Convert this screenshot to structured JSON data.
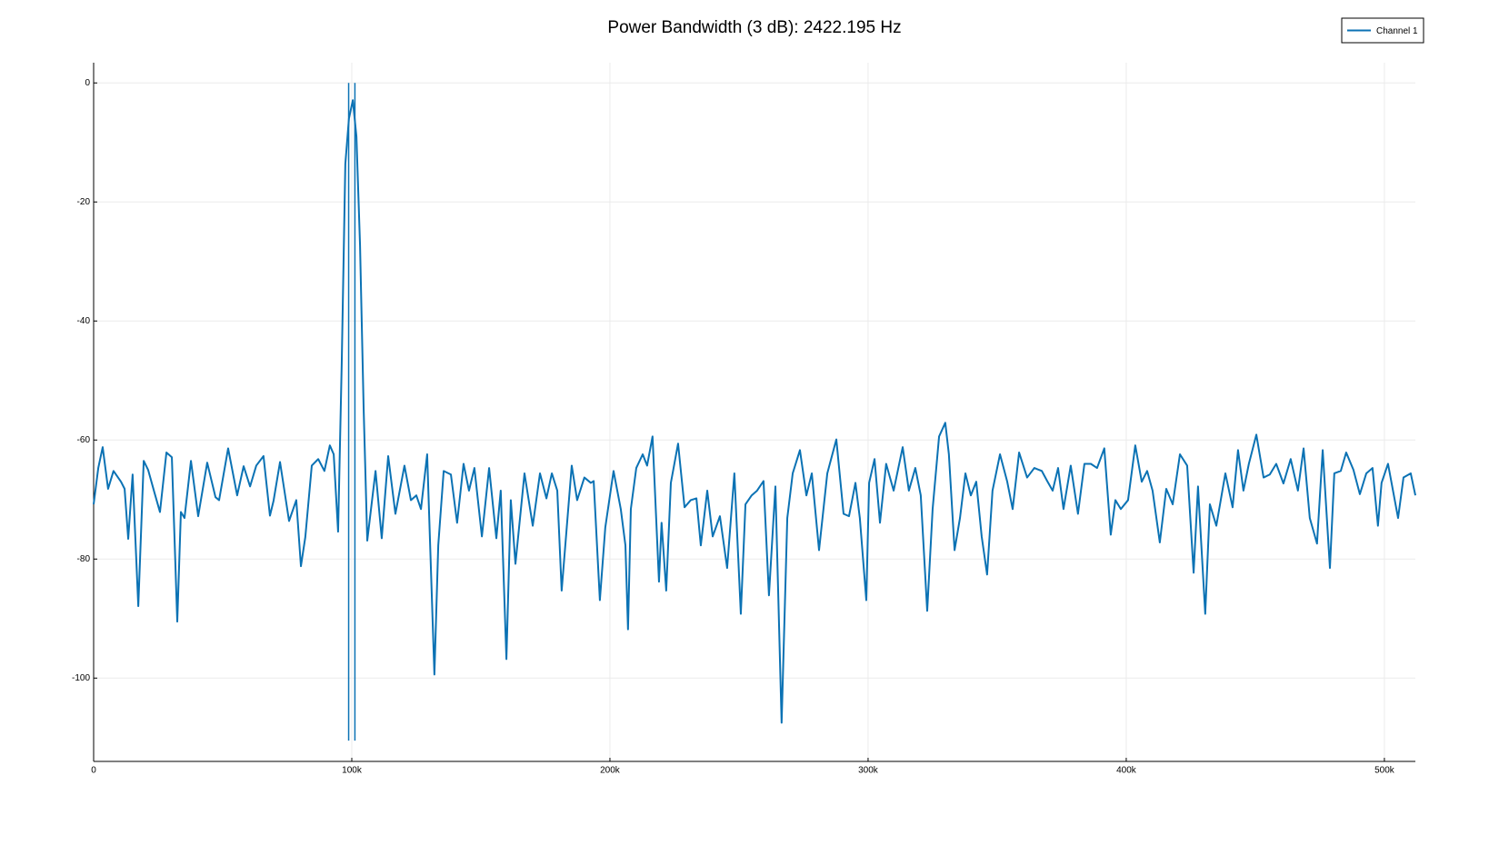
{
  "chart_data": {
    "type": "line",
    "title": "Power Bandwidth (3 dB): 2422.195 Hz",
    "xlim": [
      0,
      512000
    ],
    "ylim": [
      -114,
      3.4
    ],
    "xticks": [
      0,
      {
        "value": 100000,
        "label": "100k"
      },
      {
        "value": 200000,
        "label": "200k"
      },
      {
        "value": 300000,
        "label": "300k"
      },
      {
        "value": 400000,
        "label": "400k"
      },
      {
        "value": 500000,
        "label": "500k"
      }
    ],
    "yticks": [
      0,
      -20,
      -40,
      -60,
      -80,
      -100
    ],
    "grid": true,
    "legend": "top-right",
    "x": [
      0,
      1800,
      3500,
      5600,
      7700,
      10600,
      12000,
      13400,
      15100,
      17300,
      19400,
      21100,
      23600,
      25700,
      28200,
      30300,
      32400,
      33800,
      35200,
      37700,
      40500,
      44000,
      47200,
      48600,
      52100,
      55600,
      58100,
      60600,
      63000,
      65800,
      68300,
      69700,
      72200,
      75700,
      78500,
      80300,
      82000,
      84500,
      87000,
      89400,
      91500,
      93000,
      94700,
      96100,
      97500,
      98900,
      100400,
      101800,
      103200,
      104600,
      106000,
      109200,
      111600,
      114100,
      116900,
      120400,
      122900,
      125000,
      126800,
      129200,
      132000,
      133500,
      135600,
      138400,
      140800,
      143300,
      145400,
      147500,
      150400,
      153200,
      156000,
      157700,
      159900,
      161600,
      163400,
      166900,
      170100,
      172900,
      175400,
      177500,
      179600,
      181300,
      185200,
      187300,
      190100,
      192600,
      193700,
      196100,
      198200,
      201400,
      204200,
      206000,
      207000,
      208100,
      210200,
      212700,
      214400,
      216500,
      219000,
      220000,
      221800,
      223600,
      226400,
      228900,
      231300,
      233500,
      235200,
      237700,
      239800,
      242600,
      245400,
      248200,
      250700,
      252500,
      254900,
      257000,
      259500,
      261600,
      264100,
      266500,
      268700,
      270800,
      273600,
      276100,
      278200,
      281000,
      284200,
      287700,
      290500,
      292600,
      295100,
      296800,
      299300,
      300400,
      302500,
      304600,
      307000,
      309900,
      313400,
      315800,
      318300,
      320400,
      322900,
      325000,
      327500,
      329900,
      331300,
      333500,
      335600,
      337700,
      339800,
      341900,
      344000,
      346100,
      348200,
      351100,
      353900,
      356000,
      358500,
      361600,
      364400,
      367300,
      369400,
      371500,
      373600,
      375700,
      378500,
      381300,
      383800,
      386300,
      388700,
      391500,
      394000,
      395800,
      397900,
      400700,
      403500,
      406000,
      408100,
      410200,
      413000,
      415500,
      418000,
      420800,
      423600,
      426100,
      427800,
      430600,
      432400,
      434900,
      438400,
      441200,
      443300,
      445400,
      447500,
      450400,
      453200,
      455600,
      458100,
      460900,
      463700,
      466500,
      468700,
      471100,
      473900,
      476100,
      478900,
      480600,
      483100,
      485200,
      488000,
      490500,
      493000,
      495400,
      497500,
      498900,
      501400,
      505300,
      507400,
      510200,
      512000
    ],
    "series": [
      {
        "name": "Channel 1",
        "color": "#0b72b4",
        "values": [
          -70.8,
          -64.7,
          -61.2,
          -68.2,
          -65.2,
          -67,
          -68.2,
          -76.6,
          -65.8,
          -87.9,
          -63.5,
          -65,
          -68.9,
          -72.1,
          -62.1,
          -62.9,
          -90.5,
          -72.1,
          -73.1,
          -63.5,
          -72.8,
          -63.8,
          -69.6,
          -70.1,
          -61.4,
          -69.3,
          -64.4,
          -67.8,
          -64.3,
          -62.7,
          -72.7,
          -70.2,
          -63.7,
          -73.6,
          -70.1,
          -81.2,
          -76.3,
          -64.3,
          -63.2,
          -65.2,
          -60.9,
          -62.4,
          -75.4,
          -47.2,
          -13.6,
          -6,
          -2.9,
          -9,
          -27.3,
          -54.8,
          -76.9,
          -65.2,
          -76.5,
          -62.7,
          -72.4,
          -64.3,
          -70.1,
          -69.3,
          -71.6,
          -62.4,
          -99.4,
          -77.7,
          -65.2,
          -65.8,
          -73.9,
          -64,
          -68.5,
          -64.7,
          -76.2,
          -64.7,
          -76.5,
          -68.5,
          -96.8,
          -70.1,
          -80.8,
          -65.6,
          -74.4,
          -65.6,
          -69.8,
          -65.6,
          -68.5,
          -85.3,
          -64.3,
          -70.1,
          -66.3,
          -67.2,
          -66.9,
          -86.9,
          -74.7,
          -65.2,
          -71.6,
          -77.7,
          -91.8,
          -71.6,
          -64.7,
          -62.4,
          -64.3,
          -59.4,
          -83.8,
          -73.9,
          -85.3,
          -67.2,
          -60.6,
          -71.3,
          -70.1,
          -69.8,
          -77.7,
          -68.5,
          -76.2,
          -72.8,
          -81.5,
          -65.6,
          -89.2,
          -70.8,
          -69.3,
          -68.5,
          -66.9,
          -86.1,
          -67.8,
          -107.5,
          -73.1,
          -65.6,
          -61.7,
          -69.3,
          -65.6,
          -78.5,
          -65.6,
          -59.9,
          -72.4,
          -72.8,
          -67.2,
          -73.1,
          -86.9,
          -67.2,
          -63.2,
          -73.9,
          -64,
          -68.5,
          -61.2,
          -68.5,
          -64.7,
          -69.3,
          -88.7,
          -71.6,
          -59.4,
          -57.1,
          -62.4,
          -78.5,
          -73.1,
          -65.6,
          -69.3,
          -67,
          -76.2,
          -82.6,
          -68.5,
          -62.4,
          -67,
          -71.6,
          -62.1,
          -66.3,
          -64.7,
          -65.2,
          -66.9,
          -68.5,
          -64.7,
          -71.6,
          -64.3,
          -72.4,
          -64,
          -64,
          -64.7,
          -61.4,
          -75.9,
          -70.1,
          -71.6,
          -70.1,
          -60.9,
          -67,
          -65.2,
          -68.5,
          -77.2,
          -68.2,
          -70.8,
          -62.4,
          -64.3,
          -82.3,
          -67.8,
          -89.2,
          -70.8,
          -74.4,
          -65.6,
          -71.3,
          -61.7,
          -68.5,
          -64,
          -59.1,
          -66.3,
          -65.8,
          -64,
          -67.3,
          -63.2,
          -68.5,
          -61.4,
          -73.1,
          -77.4,
          -61.7,
          -81.5,
          -65.6,
          -65.2,
          -62.1,
          -65,
          -69.1,
          -65.6,
          -64.7,
          -74.4,
          -67.2,
          -64,
          -73.1,
          -66.3,
          -65.6,
          -69.3
        ]
      }
    ],
    "bandwidth_lines": {
      "x": [
        98789,
        101211
      ],
      "y": [
        0,
        -110.5
      ]
    }
  }
}
